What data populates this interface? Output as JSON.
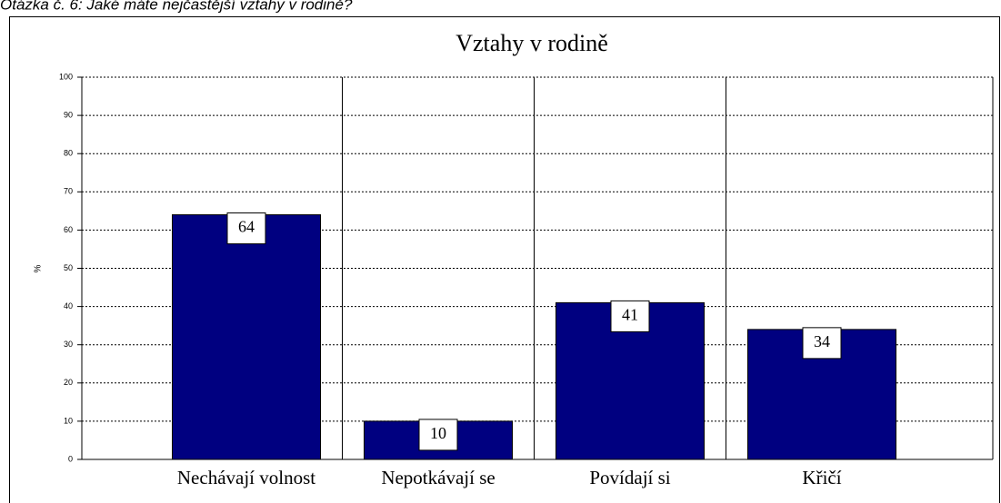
{
  "question": "Otázka č. 6: Jaké máte nejčastější vztahy v rodině?",
  "chart_data": {
    "type": "bar",
    "title": "Vztahy v rodině",
    "ylabel": "%",
    "categories": [
      "Nechávají volnost",
      "Nepotkávají se",
      "Povídají si",
      "Křičí"
    ],
    "values": [
      64,
      10,
      41,
      34
    ],
    "color": "#000080",
    "ylim": [
      0,
      100
    ],
    "yticks": [
      0,
      10,
      20,
      30,
      40,
      50,
      60,
      70,
      80,
      90,
      100
    ],
    "grid": true
  }
}
